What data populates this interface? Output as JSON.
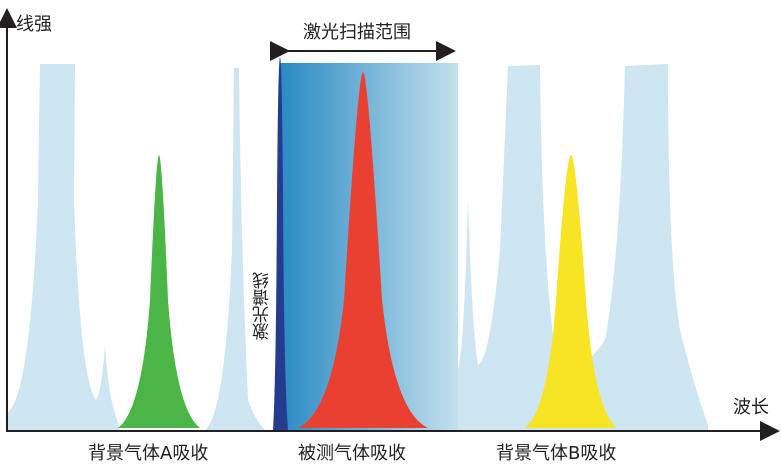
{
  "axes": {
    "y_label": "线强",
    "x_label": "波长"
  },
  "scan_range_label": "激光扫描范围",
  "laser_line_label": "激光谱线",
  "peak_labels": {
    "gas_a": "背景气体A吸收",
    "target": "被测气体吸收",
    "gas_b": "背景气体B吸收"
  },
  "colors": {
    "background_absorption": "#cde6f1",
    "gas_a": "#4bb548",
    "target": "#e84132",
    "gas_b": "#f7e425",
    "laser_line": "#253b8f",
    "scan_gradient_start": "#2a8ac4",
    "scan_gradient_end": "#c4e0ee",
    "axis": "#231f20"
  }
}
